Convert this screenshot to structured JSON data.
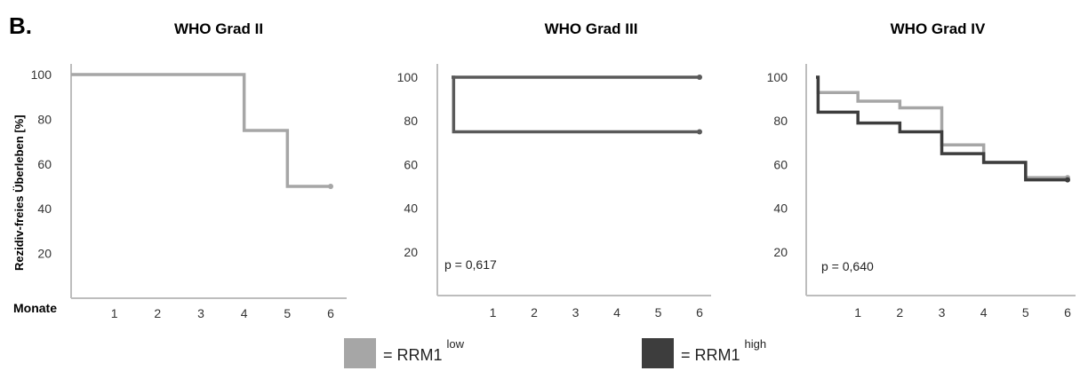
{
  "figure": {
    "panel_label": "B.",
    "ylabel": "Rezidiv-freies Überleben [%]",
    "xlabel_prefix": "Monate"
  },
  "legend": [
    {
      "prefix": "= RRM1",
      "sup": "low",
      "color": "#a6a6a6"
    },
    {
      "prefix": "= RRM1",
      "sup": "high",
      "color": "#3d3d3d"
    }
  ],
  "chart_data": [
    {
      "type": "line",
      "title": "WHO Grad II",
      "xlim": [
        0,
        6.3
      ],
      "ylim": [
        0,
        105
      ],
      "xticks": [
        1,
        2,
        3,
        4,
        5,
        6
      ],
      "yticks": [
        20,
        40,
        60,
        80,
        100
      ],
      "annotation": "",
      "series": [
        {
          "color": "#a6a6a6",
          "steps": [
            [
              0,
              100
            ],
            [
              4,
              75
            ],
            [
              5,
              50
            ]
          ],
          "end": 6
        }
      ]
    },
    {
      "type": "line",
      "title": "WHO Grad III",
      "xlim": [
        0,
        6.3
      ],
      "ylim": [
        0,
        105
      ],
      "xticks": [
        1,
        2,
        3,
        4,
        5,
        6
      ],
      "yticks": [
        20,
        40,
        60,
        80,
        100
      ],
      "annotation": "p = 0,617",
      "series": [
        {
          "color": "#5a5a5a",
          "steps": [
            [
              0,
              100
            ]
          ],
          "end": 6
        },
        {
          "color": "#5a5a5a",
          "steps": [
            [
              0,
              100
            ],
            [
              0.05,
              75
            ]
          ],
          "end": 6
        }
      ]
    },
    {
      "type": "line",
      "title": "WHO Grad IV",
      "xlim": [
        0,
        6.3
      ],
      "ylim": [
        0,
        105
      ],
      "xticks": [
        1,
        2,
        3,
        4,
        5,
        6
      ],
      "yticks": [
        20,
        40,
        60,
        80,
        100
      ],
      "annotation": "p = 0,640",
      "series": [
        {
          "color": "#a6a6a6",
          "steps": [
            [
              0,
              100
            ],
            [
              0.05,
              93
            ],
            [
              1,
              89
            ],
            [
              2,
              86
            ],
            [
              3,
              69
            ],
            [
              4,
              61
            ],
            [
              5,
              54
            ]
          ],
          "end": 6
        },
        {
          "color": "#3d3d3d",
          "steps": [
            [
              0,
              100
            ],
            [
              0.05,
              84
            ],
            [
              1,
              79
            ],
            [
              2,
              75
            ],
            [
              3,
              65
            ],
            [
              4,
              61
            ],
            [
              5,
              53
            ]
          ],
          "end": 6
        }
      ]
    }
  ]
}
